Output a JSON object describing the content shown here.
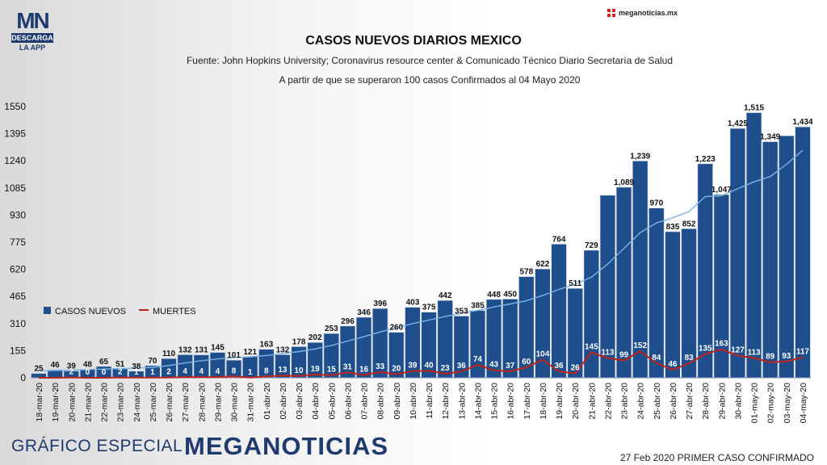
{
  "header": {
    "logo_text": "MN",
    "logo_sub": "DESCARGA",
    "logo_sub2": "LA APP",
    "brand_top": "meganoticias.mx"
  },
  "footer": {
    "left_text": "GRÁFICO ESPECIAL",
    "brand": "MEGANOTICIAS",
    "right_text": "27 Feb 2020 PRIMER CASO CONFIRMADO"
  },
  "colors": {
    "bar": "#1f4e8c",
    "bar_edge": "#c9d6e8",
    "deaths_line": "#c0231b",
    "trend_line": "#7db3e6"
  },
  "chart_data": {
    "type": "bar",
    "title": "CASOS NUEVOS DIARIOS MEXICO",
    "subtitle": "Fuente: John Hopkins University; Coronavirus resource center & Comunicado Técnico Diario Secretaría de Salud",
    "subtitle2": "A partir de que se superaron 100 casos Confirmados al 04 Mayo 2020",
    "ylim": [
      0,
      1550
    ],
    "yticks": [
      0,
      155,
      310,
      465,
      620,
      775,
      930,
      1085,
      1240,
      1395,
      1550
    ],
    "grid": false,
    "legend_position": "left-middle",
    "categories": [
      "18-mar-20",
      "19-mar-20",
      "20-mar-20",
      "21-mar-20",
      "22-mar-20",
      "23-mar-20",
      "24-mar-20",
      "25-mar-20",
      "26-mar-20",
      "27-mar-20",
      "28-mar-20",
      "29-mar-20",
      "30-mar-20",
      "31-mar-20",
      "01-abr-20",
      "02-abr-20",
      "03-abr-20",
      "04-abr-20",
      "05-abr-20",
      "06-abr-20",
      "07-abr-20",
      "08-abr-20",
      "09-abr-20",
      "10-abr-20",
      "11-abr-20",
      "12-abr-20",
      "13-abr-20",
      "14-abr-20",
      "15-abr-20",
      "16-abr-20",
      "17-abr-20",
      "18-abr-20",
      "19-abr-20",
      "20-abr-20",
      "21-abr-20",
      "22-abr-20",
      "23-abr-20",
      "24-abr-20",
      "25-abr-20",
      "26-abr-20",
      "27-abr-20",
      "28-abr-20",
      "29-abr-20",
      "30-abr-20",
      "01-may-20",
      "02-may-20",
      "03-may-20",
      "04-may-20"
    ],
    "series": [
      {
        "name": "CASOS NUEVOS",
        "type": "bar",
        "values": [
          25,
          46,
          39,
          48,
          65,
          51,
          38,
          70,
          110,
          132,
          131,
          145,
          101,
          121,
          163,
          132,
          178,
          202,
          253,
          296,
          346,
          396,
          260,
          403,
          375,
          442,
          353,
          385,
          448,
          450,
          578,
          622,
          764,
          511,
          729,
          1043,
          1089,
          1239,
          970,
          835,
          852,
          1223,
          1047,
          1425,
          1515,
          1349,
          1383,
          1434
        ],
        "labels": [
          "25",
          "46",
          "39",
          "48",
          "65",
          "51",
          "38",
          "70",
          "110",
          "132",
          "131",
          "145",
          "101",
          "121",
          "163",
          "132",
          "178",
          "202",
          "253",
          "296",
          "346",
          "396",
          "260",
          "403",
          "375",
          "442",
          "353",
          "385",
          "448",
          "450",
          "578",
          "622",
          "764",
          "511",
          "729",
          "",
          "1,089",
          "1,239",
          "970",
          "835",
          "852",
          "1,223",
          "1,047",
          "1,425",
          "1,515",
          "1,349",
          "",
          "1,434"
        ]
      },
      {
        "name": "MUERTES",
        "type": "line",
        "values": [
          0,
          0,
          2,
          0,
          0,
          2,
          1,
          1,
          2,
          4,
          4,
          4,
          8,
          1,
          8,
          13,
          10,
          19,
          15,
          31,
          16,
          33,
          20,
          39,
          40,
          23,
          36,
          74,
          43,
          37,
          60,
          104,
          36,
          26,
          145,
          113,
          99,
          152,
          84,
          46,
          83,
          135,
          163,
          127,
          113,
          89,
          93,
          117
        ],
        "labels": [
          "",
          "",
          "2",
          "0",
          "0",
          "2",
          "1",
          "1",
          "2",
          "4",
          "4",
          "4",
          "8",
          "1",
          "8",
          "13",
          "10",
          "19",
          "15",
          "31",
          "16",
          "33",
          "20",
          "39",
          "40",
          "23",
          "36",
          "74",
          "43",
          "37",
          "60",
          "104",
          "36",
          "26",
          "145",
          "113",
          "99",
          "152",
          "84",
          "46",
          "83",
          "135",
          "163",
          "127",
          "113",
          "89",
          "93",
          "117"
        ]
      },
      {
        "type": "trend",
        "values": [
          40,
          42,
          44,
          47,
          50,
          53,
          55,
          60,
          70,
          85,
          98,
          108,
          115,
          120,
          128,
          138,
          150,
          165,
          185,
          210,
          235,
          262,
          285,
          310,
          330,
          350,
          368,
          385,
          405,
          422,
          440,
          470,
          505,
          535,
          575,
          650,
          740,
          830,
          885,
          915,
          950,
          1035,
          1040,
          1080,
          1120,
          1150,
          1220,
          1300
        ]
      }
    ]
  }
}
